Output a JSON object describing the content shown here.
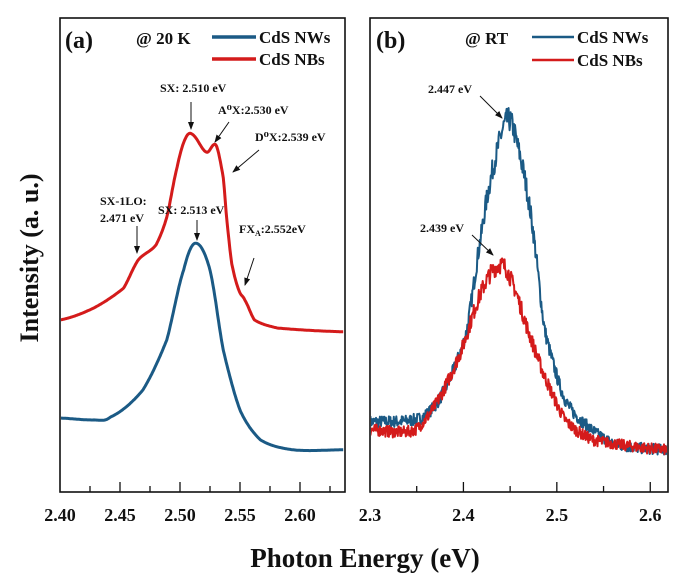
{
  "colors": {
    "nws": "#1b5a85",
    "nbs": "#d41b1b"
  },
  "xlabel": "Photon Energy (eV)",
  "ylabel": "Intensity (a. u.)",
  "chart_data": [
    {
      "type": "line",
      "panel": "(a)",
      "condition": "@ 20 K",
      "xlim": [
        2.4,
        2.6375
      ],
      "ylim": [
        0,
        100
      ],
      "y_ticks_shown": false,
      "grid": false,
      "legend_placement": "top-right",
      "x_ticks": [
        "2.40",
        "2.45",
        "2.50",
        "2.55",
        "2.60"
      ],
      "x_tick_values": [
        2.4,
        2.45,
        2.5,
        2.55,
        2.6
      ],
      "series": [
        {
          "name": "CdS NWs",
          "color": "#1b5a85",
          "x": [
            2.4,
            2.428,
            2.442,
            2.469,
            2.489,
            2.503,
            2.513,
            2.525,
            2.536,
            2.55,
            2.567,
            2.594,
            2.636
          ],
          "y": [
            15.6,
            15.2,
            15.8,
            21.5,
            32.1,
            46.8,
            52.5,
            46.8,
            30.0,
            17.3,
            11.0,
            8.9,
            8.9
          ]
        },
        {
          "name": "CdS NBs",
          "color": "#d41b1b",
          "x": [
            2.4,
            2.428,
            2.453,
            2.465,
            2.48,
            2.489,
            2.497,
            2.504,
            2.51,
            2.522,
            2.53,
            2.536,
            2.539,
            2.543,
            2.549,
            2.554,
            2.562,
            2.581,
            2.636
          ],
          "y": [
            36.3,
            38.8,
            43.0,
            48.9,
            52.1,
            58.0,
            67.9,
            74.3,
            75.5,
            71.7,
            73.2,
            66.5,
            57.4,
            48.3,
            42.6,
            40.5,
            36.3,
            34.6,
            33.8
          ]
        }
      ],
      "annotations": [
        "SX: 2.510 eV",
        "A⁰X:2.530 eV",
        "D⁰X:2.539 eV",
        "SX-1LO:",
        "2.471 eV",
        "SX: 2.513 eV",
        "FX",
        "A",
        ":2.552eV"
      ]
    },
    {
      "type": "line",
      "panel": "(b)",
      "condition": "@ RT",
      "xlim": [
        2.3,
        2.619
      ],
      "ylim": [
        0,
        100
      ],
      "y_ticks_shown": false,
      "grid": false,
      "legend_placement": "top-right",
      "x_ticks": [
        "2.3",
        "2.4",
        "2.5",
        "2.6"
      ],
      "x_tick_values": [
        2.3,
        2.4,
        2.5,
        2.6
      ],
      "series": [
        {
          "name": "CdS NWs",
          "color": "#1b5a85",
          "x": [
            2.3,
            2.355,
            2.378,
            2.403,
            2.42,
            2.431,
            2.447,
            2.459,
            2.473,
            2.487,
            2.509,
            2.538,
            2.566,
            2.619
          ],
          "y": [
            14.8,
            15.6,
            20.9,
            33.5,
            55.3,
            67.9,
            78.5,
            72.2,
            57.4,
            34.2,
            19.4,
            13.1,
            9.9,
            8.9
          ]
        },
        {
          "name": "CdS NBs",
          "color": "#d41b1b",
          "x": [
            2.3,
            2.348,
            2.373,
            2.398,
            2.42,
            2.439,
            2.451,
            2.469,
            2.487,
            2.509,
            2.538,
            2.619
          ],
          "y": [
            13.1,
            13.1,
            19.4,
            30.0,
            42.6,
            47.9,
            44.7,
            34.2,
            24.3,
            15.2,
            11.0,
            8.9
          ]
        }
      ],
      "annotations": [
        "2.447 eV",
        "2.439 eV"
      ]
    }
  ]
}
